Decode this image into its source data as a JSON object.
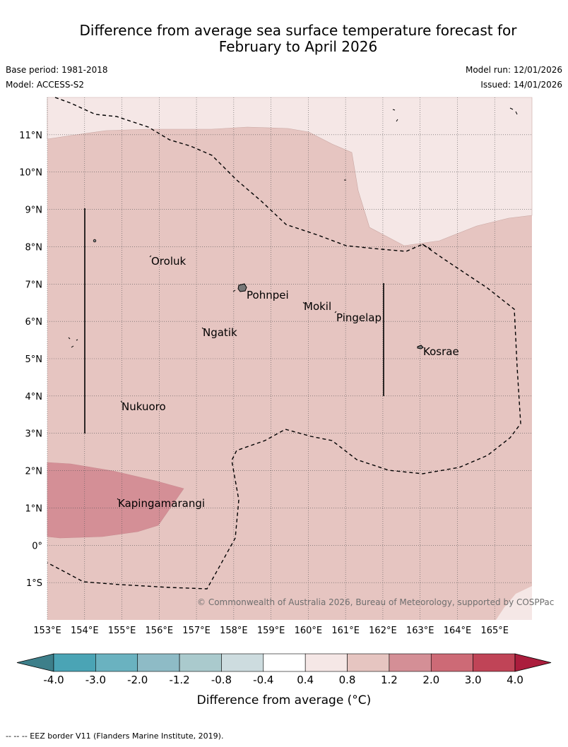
{
  "title_line1": "Difference from average sea surface temperature forecast for",
  "title_line2": "February to April 2026",
  "base_period": "Base period: 1981-2018",
  "model": "Model: ACCESS-S2",
  "model_run": "Model run: 12/01/2026",
  "issued": "Issued: 14/01/2026",
  "map": {
    "lon_range": [
      153,
      166
    ],
    "lat_range": [
      -2,
      12
    ],
    "lat_ticks": [
      "11°N",
      "10°N",
      "9°N",
      "8°N",
      "7°N",
      "6°N",
      "5°N",
      "4°N",
      "3°N",
      "2°N",
      "1°N",
      "0°",
      "1°S"
    ],
    "lon_ticks": [
      "153°E",
      "154°E",
      "155°E",
      "156°E",
      "157°E",
      "158°E",
      "159°E",
      "160°E",
      "161°E",
      "162°E",
      "163°E",
      "164°E",
      "165°E"
    ],
    "places": {
      "oroluk": "Oroluk",
      "pohnpei": "Pohnpei",
      "mokil": "Mokil",
      "pingelap": "Pingelap",
      "ngatik": "Ngatik",
      "kosrae": "Kosrae",
      "nukuoro": "Nukuoro",
      "kapingamarangi": "Kapingamarangi"
    },
    "copyright": "© Commonwealth of Australia 2026, Bureau of Meteorology, supported by COSPPac",
    "colors": {
      "anom_0p4_0p8": "#f5e7e6",
      "anom_0p8_1p2": "#e6c5c1",
      "anom_1p2_2p0": "#d48f96"
    }
  },
  "colorbar": {
    "labels": [
      "-4.0",
      "-3.0",
      "-2.0",
      "-1.2",
      "-0.8",
      "-0.4",
      "0.4",
      "0.8",
      "1.2",
      "2.0",
      "3.0",
      "4.0"
    ],
    "colors": [
      "#3d7f8a",
      "#4aa4b5",
      "#6ab2c0",
      "#8ebbc6",
      "#aacacd",
      "#cddcdf",
      "#ffffff",
      "#f5e7e6",
      "#e6c5c1",
      "#d48f96",
      "#cd6a76",
      "#c04457",
      "#ab1d3d"
    ],
    "title": "Difference from average (°C)"
  },
  "footer": "-- -- -- EEZ border V11 (Flanders Marine Institute, 2019)."
}
